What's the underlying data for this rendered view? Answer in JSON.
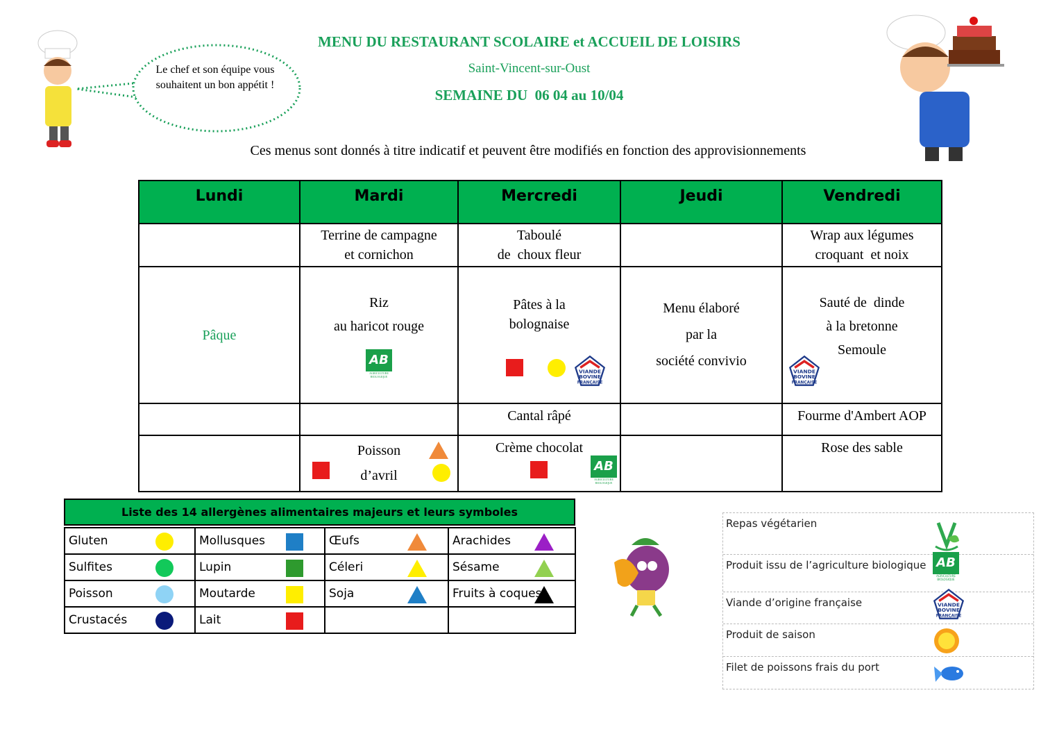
{
  "header": {
    "title": "MENU DU RESTAURANT SCOLAIRE et ACCUEIL DE LOISIRS",
    "town": "Saint-Vincent-sur-Oust",
    "week": "SEMAINE DU  06 04 au 10/04",
    "disclaimer": "Ces menus sont donnés à titre indicatif et peuvent être modifiés en fonction des approvisionnements",
    "bubble": [
      "Le chef et son équipe vous",
      "souhaitent un bon appétit !"
    ]
  },
  "menu": {
    "days": [
      "Lundi",
      "Mardi",
      "Mercredi",
      "Jeudi",
      "Vendredi"
    ],
    "starters": [
      "",
      [
        "Terrine de campagne",
        "et cornichon"
      ],
      [
        "Taboulé",
        "de  choux fleur"
      ],
      "",
      [
        "Wrap aux légumes",
        "croquant  et noix"
      ]
    ],
    "mains": {
      "lundi": "Pâque",
      "mardi": [
        "Riz",
        "au haricot rouge"
      ],
      "mercredi": [
        "Pâtes à la",
        "bolognaise"
      ],
      "jeudi": [
        "Menu élaboré",
        "par la",
        "société convivio"
      ],
      "vendredi": [
        "Sauté de  dinde",
        "à la bretonne",
        "Semoule"
      ]
    },
    "cheese": [
      "",
      "",
      "Cantal râpé",
      "",
      "Fourme d'Ambert AOP"
    ],
    "desserts": [
      "",
      [
        "Poisson",
        "d’avril"
      ],
      "Crème chocolat",
      "",
      "Rose des sable"
    ],
    "ab_logo_text": [
      "AB",
      "AGRICULTURE",
      "BIOLOGIQUE"
    ],
    "vbf_logo_text": [
      "VIANDE",
      "BOVINE",
      "FRANÇAISE"
    ]
  },
  "allergens": {
    "title": "Liste des 14 allergènes alimentaires majeurs et leurs symboles",
    "items": [
      {
        "label": "Gluten",
        "shape": "circle",
        "color": "#ffee00"
      },
      {
        "label": "Mollusques",
        "shape": "square",
        "color": "#1f7fc6"
      },
      {
        "label": "Œufs",
        "shape": "triangle",
        "color": "#f08a3a"
      },
      {
        "label": "Arachides",
        "shape": "triangle",
        "color": "#9b1fc6"
      },
      {
        "label": "Sulfites",
        "shape": "circle",
        "color": "#12c95a"
      },
      {
        "label": "Lupin",
        "shape": "square",
        "color": "#2e9a2e"
      },
      {
        "label": "Céleri",
        "shape": "triangle",
        "color": "#ffee00"
      },
      {
        "label": "Sésame",
        "shape": "triangle",
        "color": "#92d050"
      },
      {
        "label": "Poisson",
        "shape": "circle",
        "color": "#8fd3f5"
      },
      {
        "label": "Moutarde",
        "shape": "square",
        "color": "#ffee00"
      },
      {
        "label": "Soja",
        "shape": "triangle",
        "color": "#1f7fc6"
      },
      {
        "label": "Fruits à coques",
        "shape": "triangle",
        "color": "#000000"
      },
      {
        "label": "Crustacés",
        "shape": "circle",
        "color": "#0a1a7a"
      },
      {
        "label": "Lait",
        "shape": "square",
        "color": "#e81c1c"
      },
      {
        "label": "",
        "shape": "",
        "color": ""
      },
      {
        "label": "",
        "shape": "",
        "color": ""
      }
    ]
  },
  "legend": [
    {
      "label": "Repas végétarien",
      "icon": "vegetarian-icon"
    },
    {
      "label": "Produit issu de l’agriculture biologique",
      "icon": "ab-organic-icon"
    },
    {
      "label": "Viande d’origine française",
      "icon": "french-meat-icon"
    },
    {
      "label": "Produit de saison",
      "icon": "sun-icon"
    },
    {
      "label": "Filet de poissons frais du port",
      "icon": "fish-icon"
    }
  ],
  "colors": {
    "accent": "#00b050",
    "title": "#1aa05a"
  }
}
